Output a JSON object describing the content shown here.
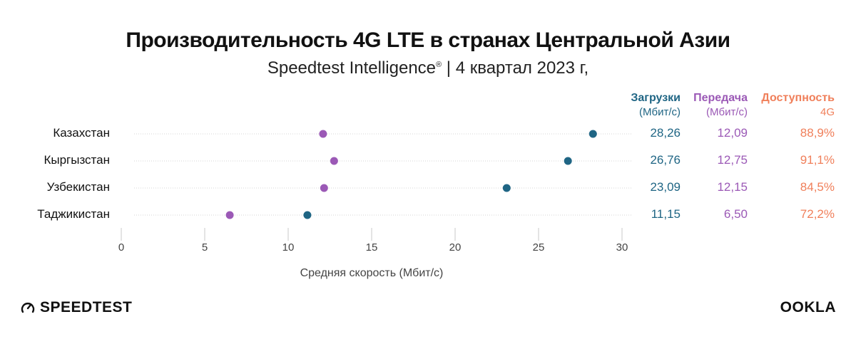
{
  "title": "Производительность 4G LTE в странах Центральной Азии",
  "subtitle_main": "Speedtest Intelligence",
  "subtitle_reg": "®",
  "subtitle_rest": " | 4 квартал 2023 г,",
  "columns": {
    "download": {
      "label": "Загрузки",
      "unit": "(Мбит/с)",
      "color": "#1f6584"
    },
    "upload": {
      "label": "Передача",
      "unit": "(Мбит/с)",
      "color": "#9b59b6"
    },
    "availability": {
      "label": "Доступность",
      "unit": "4G",
      "color": "#f07f5a"
    }
  },
  "rows": [
    {
      "country": "Казахстан",
      "download": "28,26",
      "upload": "12,09",
      "availability": "88,9%"
    },
    {
      "country": "Кыргызстан",
      "download": "26,76",
      "upload": "12,75",
      "availability": "91,1%"
    },
    {
      "country": "Узбекистан",
      "download": "23,09",
      "upload": "12,15",
      "availability": "84,5%"
    },
    {
      "country": "Таджикистан",
      "download": "11,15",
      "upload": "6,50",
      "availability": "72,2%"
    }
  ],
  "xlabel": "Средняя скорость (Мбит/с)",
  "brand_left": "SPEEDTEST",
  "brand_right": "OOKLA",
  "chart_data": {
    "type": "scatter",
    "categories": [
      "Казахстан",
      "Кыргызстан",
      "Узбекистан",
      "Таджикистан"
    ],
    "series": [
      {
        "name": "Загрузки",
        "color": "#1f6584",
        "values": [
          28.26,
          26.76,
          23.09,
          11.15
        ]
      },
      {
        "name": "Передача",
        "color": "#9b59b6",
        "values": [
          12.09,
          12.75,
          12.15,
          6.5
        ]
      }
    ],
    "xlim": [
      0,
      30
    ],
    "xticks": [
      0,
      5,
      10,
      15,
      20,
      25,
      30
    ],
    "xtick_labels": [
      "0",
      "5",
      "10",
      "15",
      "20",
      "25",
      "30"
    ],
    "xlabel": "Средняя скорость (Мбит/с)",
    "grid": false
  }
}
